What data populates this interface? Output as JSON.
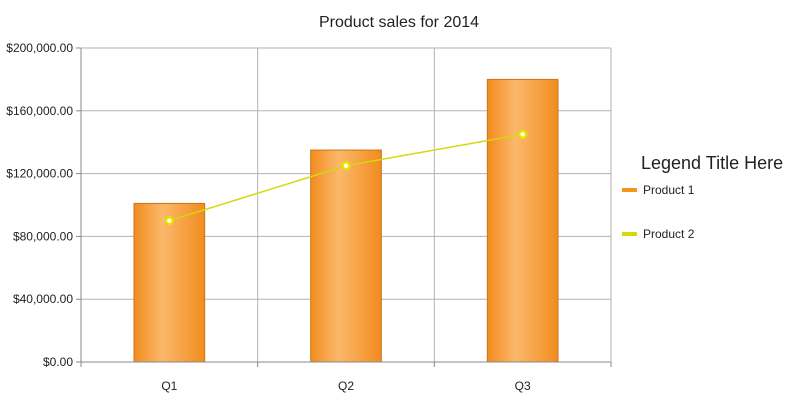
{
  "chart_data": {
    "type": "bar",
    "title": "Product sales for 2014",
    "xlabel": "",
    "ylabel": "",
    "categories": [
      "Q1",
      "Q2",
      "Q3"
    ],
    "ylim": [
      0,
      200000
    ],
    "yticks": [
      0,
      40000,
      80000,
      120000,
      160000,
      200000
    ],
    "ytick_labels": [
      "$0.00",
      "$40,000.00",
      "$80,000.00",
      "$120,000.00",
      "$160,000.00",
      "$200,000.00"
    ],
    "grid": true,
    "legend": {
      "title": "Legend Title Here",
      "placement": "right"
    },
    "series": [
      {
        "name": "Product 1",
        "kind": "bar",
        "color": "#f7941d",
        "values": [
          101000,
          135000,
          180000
        ]
      },
      {
        "name": "Product 2",
        "kind": "line",
        "color": "#d4d80f",
        "values": [
          90000,
          125000,
          145000
        ]
      }
    ]
  }
}
